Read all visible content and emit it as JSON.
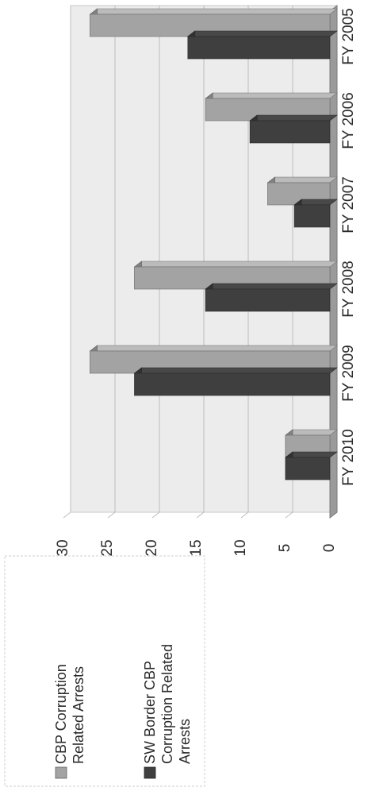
{
  "chart_data": {
    "type": "bar",
    "orientation": "rotated-90-ccw",
    "style": "3d-clustered",
    "categories": [
      "FY 2005",
      "FY 2006",
      "FY 2007",
      "FY 2008",
      "FY 2009",
      "FY 2010"
    ],
    "series": [
      {
        "name": "CBP Corruption Related Arrests",
        "values": [
          27,
          14,
          7,
          22,
          27,
          5
        ]
      },
      {
        "name": "SW Border CBP Corruption Related Arrests",
        "values": [
          16,
          9,
          4,
          14,
          22,
          5
        ]
      }
    ],
    "yticks": [
      0,
      5,
      10,
      15,
      20,
      25,
      30
    ],
    "ylim": [
      0,
      30
    ],
    "grid": true,
    "legend_position": "right",
    "colors": {
      "series_1": "#a3a3a3",
      "series_2": "#3f3f3f",
      "plot_back": "#ececec",
      "gridline": "#bdbdbd"
    }
  },
  "legend": {
    "items": [
      {
        "lines": [
          "CBP Corruption",
          "Related Arrests"
        ]
      },
      {
        "lines": [
          "SW Border CBP",
          "Corruption Related",
          "Arrests"
        ]
      }
    ]
  }
}
